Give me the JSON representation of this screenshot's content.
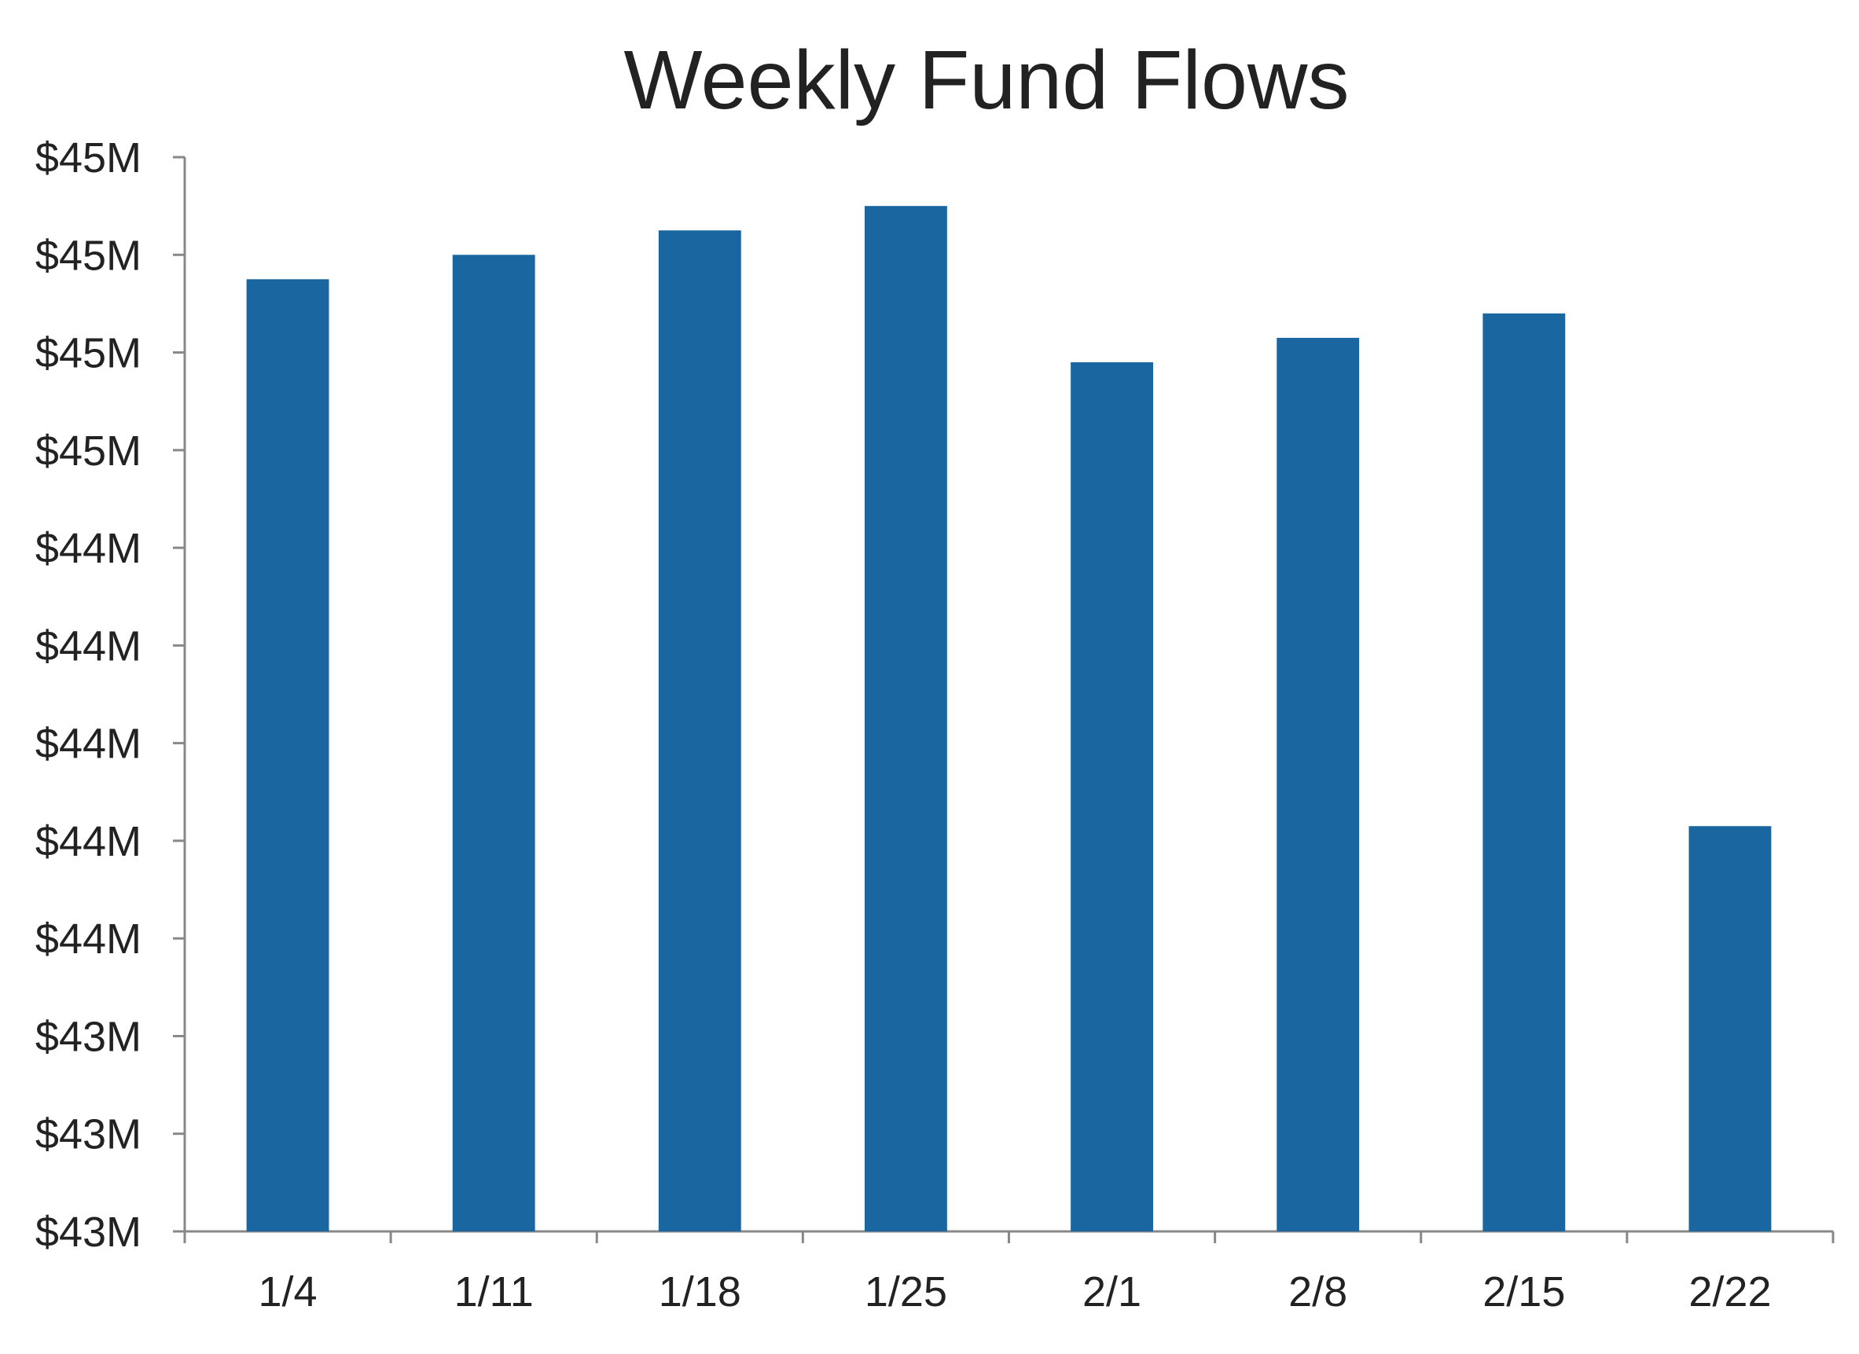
{
  "chart_data": {
    "type": "bar",
    "title": "Weekly Fund Flows",
    "xlabel": "",
    "ylabel": "",
    "categories": [
      "1/4",
      "1/11",
      "1/18",
      "1/25",
      "2/1",
      "2/8",
      "2/15",
      "2/22"
    ],
    "values": [
      44.95,
      45.0,
      45.05,
      45.1,
      44.78,
      44.83,
      44.88,
      43.83
    ],
    "ylim": [
      43.0,
      45.2
    ],
    "yticks": [
      43.0,
      43.2,
      43.4,
      43.6,
      43.8,
      44.0,
      44.2,
      44.4,
      44.6,
      44.8,
      45.0,
      45.2
    ],
    "ytick_labels": [
      "$43M",
      "$43M",
      "$43M",
      "$44M",
      "$44M",
      "$44M",
      "$44M",
      "$44M",
      "$45M",
      "$45M",
      "$45M",
      "$45M"
    ],
    "grid": false,
    "legend": "none",
    "bar_color": "#1a66a0"
  }
}
